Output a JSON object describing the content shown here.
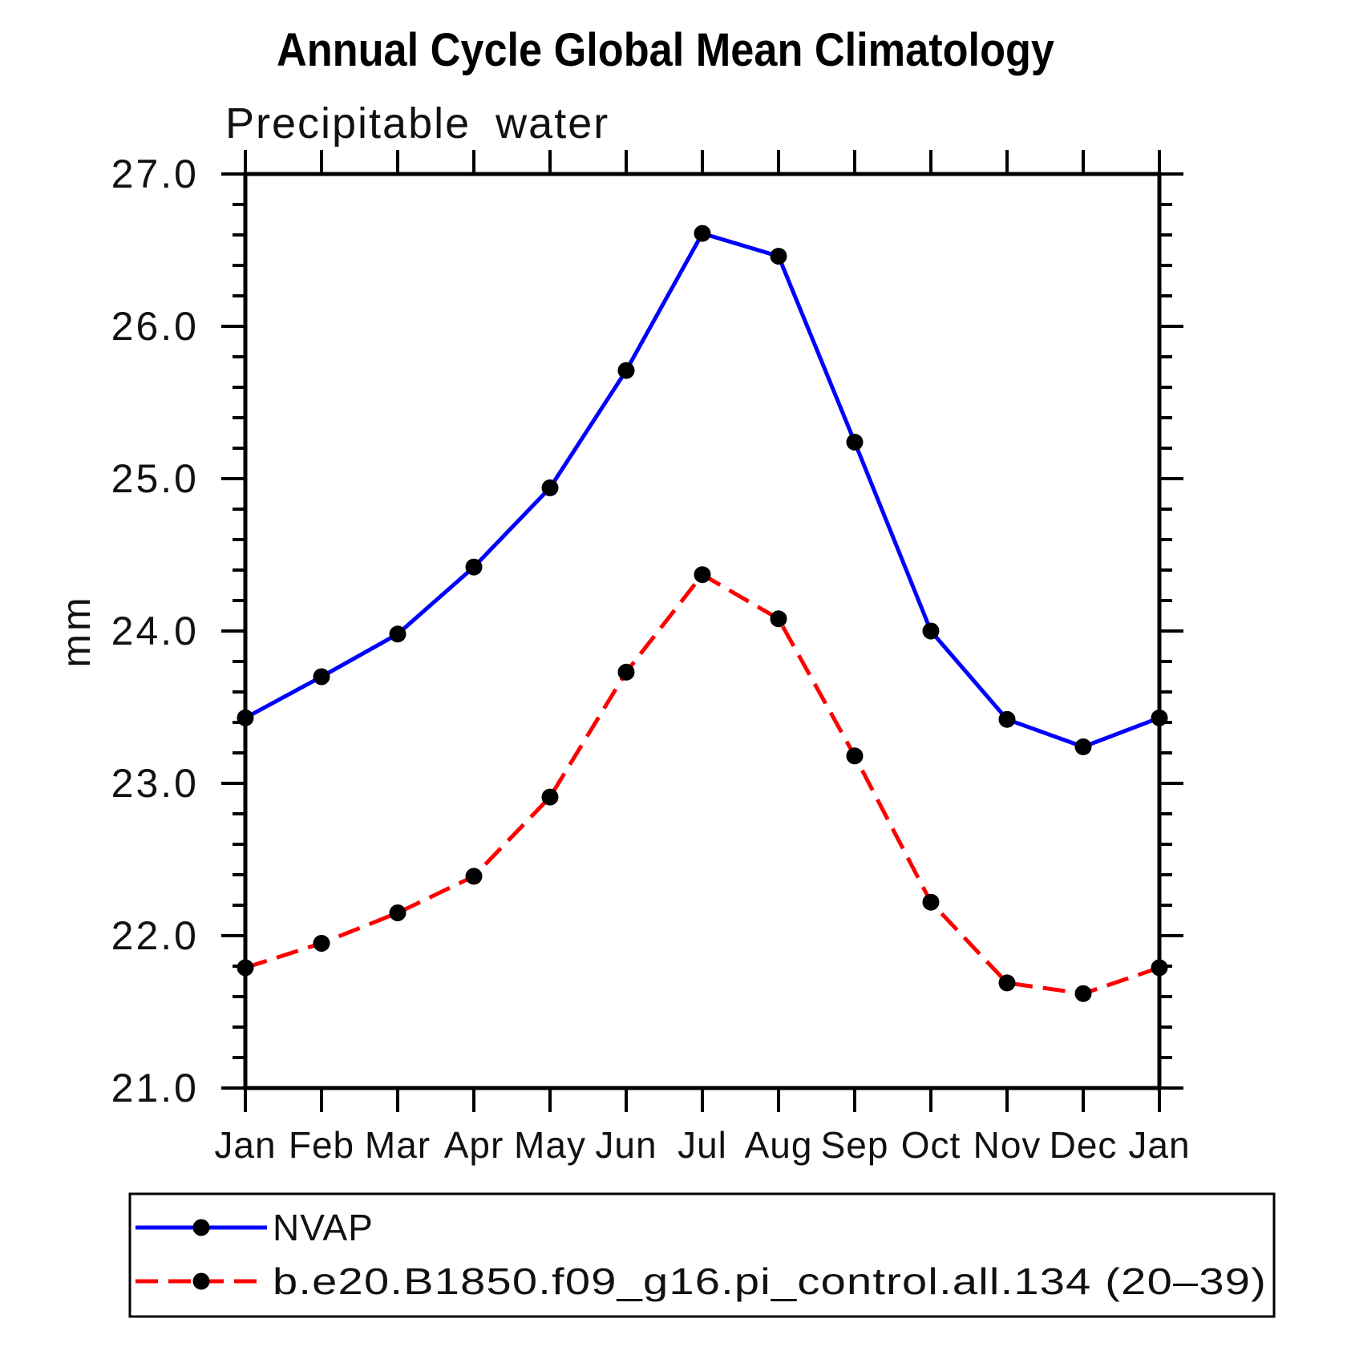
{
  "title": "Annual Cycle Global Mean Climatology",
  "subtitle": "Precipitable water",
  "colors": {
    "background": "#ffffff",
    "axis": "#000000",
    "text": "#000000",
    "series_nvap": "#0000ff",
    "series_model": "#ff0000",
    "marker": "#000000"
  },
  "chart_data": {
    "type": "line",
    "title": "Annual Cycle Global Mean Climatology",
    "subtitle": "Precipitable water",
    "xlabel": "",
    "ylabel": "mm",
    "categories": [
      "Jan",
      "Feb",
      "Mar",
      "Apr",
      "May",
      "Jun",
      "Jul",
      "Aug",
      "Sep",
      "Oct",
      "Nov",
      "Dec",
      "Jan"
    ],
    "ylim": [
      21.0,
      27.0
    ],
    "y_major_tick_step": 1.0,
    "y_minor_tick_step": 0.2,
    "y_tick_labels": [
      "21.0",
      "22.0",
      "23.0",
      "24.0",
      "25.0",
      "26.0",
      "27.0"
    ],
    "grid": false,
    "legend_position": "bottom-left",
    "series": [
      {
        "name": "NVAP",
        "color": "#0000ff",
        "line_style": "solid",
        "marker": "filled-circle",
        "marker_color": "#000000",
        "values": [
          23.43,
          23.7,
          23.98,
          24.42,
          24.94,
          25.71,
          26.61,
          26.46,
          25.24,
          24.0,
          23.42,
          23.24,
          23.43
        ]
      },
      {
        "name": "b.e20.B1850.f09_g16.pi_control.all.134 (20–39)",
        "color": "#ff0000",
        "line_style": "dashed",
        "marker": "filled-circle",
        "marker_color": "#000000",
        "values": [
          21.79,
          21.95,
          22.15,
          22.39,
          22.91,
          23.73,
          24.37,
          24.08,
          23.18,
          22.22,
          21.69,
          21.62,
          21.79
        ]
      }
    ]
  }
}
